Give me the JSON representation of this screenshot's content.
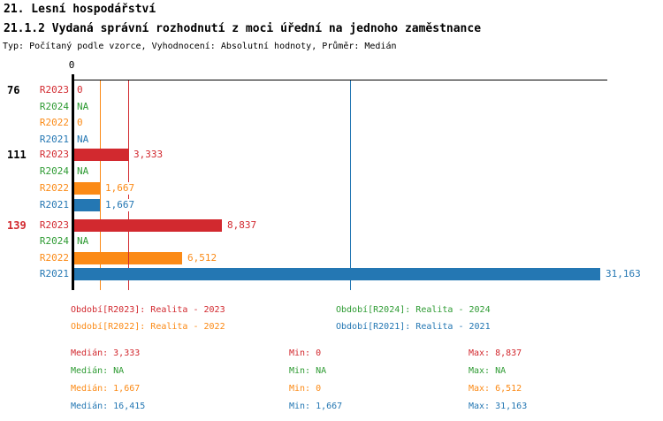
{
  "header": {
    "title1": "21. Lesní hospodářství",
    "title2": "21.1.2 Vydaná správní rozhodnutí z moci úřední na jednoho zaměstnance",
    "subtitle": "Typ: Počítaný podle vzorce, Vyhodnocení: Absolutní hodnoty, Průměr: Medián"
  },
  "colors": {
    "R2023": "#D2292F",
    "R2024": "#2E9B33",
    "R2022": "#FB8A16",
    "R2021": "#2477B3",
    "axis": "#000000"
  },
  "chart_data": {
    "type": "bar",
    "orientation": "horizontal",
    "title": "21.1.2 Vydaná správní rozhodnutí z moci úřední na jednoho zaměstnance",
    "axis": {
      "tick_label": "0",
      "min": 0,
      "approx_max": 31.5,
      "grid": false
    },
    "series_order": [
      "R2023",
      "R2024",
      "R2022",
      "R2021"
    ],
    "groups": [
      {
        "id": "76",
        "id_color": "#000000",
        "rows": [
          {
            "series": "R2023",
            "value": 0,
            "display": "0"
          },
          {
            "series": "R2024",
            "value": null,
            "display": "NA"
          },
          {
            "series": "R2022",
            "value": 0,
            "display": "0"
          },
          {
            "series": "R2021",
            "value": null,
            "display": "NA"
          }
        ]
      },
      {
        "id": "111",
        "id_color": "#000000",
        "rows": [
          {
            "series": "R2023",
            "value": 3.333,
            "display": "3,333"
          },
          {
            "series": "R2024",
            "value": null,
            "display": "NA"
          },
          {
            "series": "R2022",
            "value": 1.667,
            "display": "1,667"
          },
          {
            "series": "R2021",
            "value": 1.667,
            "display": "1,667"
          }
        ]
      },
      {
        "id": "139",
        "id_color": "#D2292F",
        "rows": [
          {
            "series": "R2023",
            "value": 8.837,
            "display": "8,837"
          },
          {
            "series": "R2024",
            "value": null,
            "display": "NA"
          },
          {
            "series": "R2022",
            "value": 6.512,
            "display": "6,512"
          },
          {
            "series": "R2021",
            "value": 31.163,
            "display": "31,163"
          }
        ]
      }
    ],
    "median_lines": [
      {
        "series": "R2022",
        "value": 1.667
      },
      {
        "series": "R2023",
        "value": 3.333
      },
      {
        "series": "R2021",
        "value": 16.415
      }
    ]
  },
  "legend": {
    "items": [
      {
        "series": "R2023",
        "label": "Období[R2023]: Realita - 2023"
      },
      {
        "series": "R2024",
        "label": "Období[R2024]: Realita - 2024"
      },
      {
        "series": "R2022",
        "label": "Období[R2022]: Realita - 2022"
      },
      {
        "series": "R2021",
        "label": "Období[R2021]: Realita - 2021"
      }
    ]
  },
  "stats": {
    "rows": [
      {
        "series": "R2023",
        "median": "Medián: 3,333",
        "min": "Min: 0",
        "max": "Max: 8,837"
      },
      {
        "series": "R2024",
        "median": "Medián: NA",
        "min": "Min: NA",
        "max": "Max: NA"
      },
      {
        "series": "R2022",
        "median": "Medián: 1,667",
        "min": "Min: 0",
        "max": "Max: 6,512"
      },
      {
        "series": "R2021",
        "median": "Medián: 16,415",
        "min": "Min: 1,667",
        "max": "Max: 31,163"
      }
    ]
  }
}
